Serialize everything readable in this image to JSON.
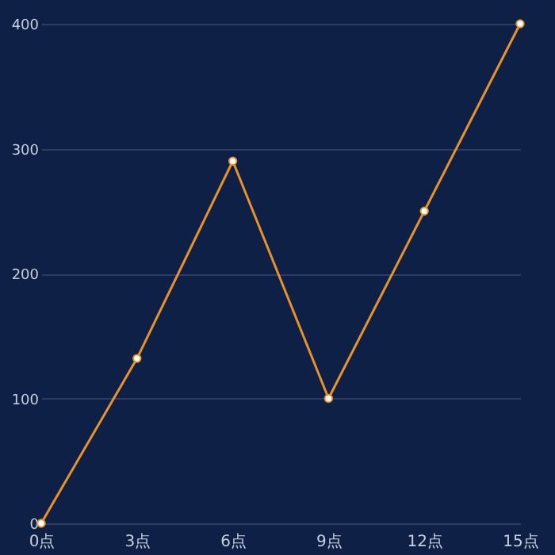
{
  "chart_data": {
    "type": "line",
    "categories": [
      "0点",
      "3点",
      "6点",
      "9点",
      "12点",
      "15点"
    ],
    "series": [
      {
        "color": "#e8922a",
        "values": [
          0,
          132,
          290,
          100,
          250,
          400
        ]
      }
    ],
    "ylim": [
      0,
      400
    ],
    "yticks": [
      0,
      100,
      200,
      300,
      400
    ],
    "grid": "y",
    "marker": "circle",
    "line_style": "solid"
  }
}
